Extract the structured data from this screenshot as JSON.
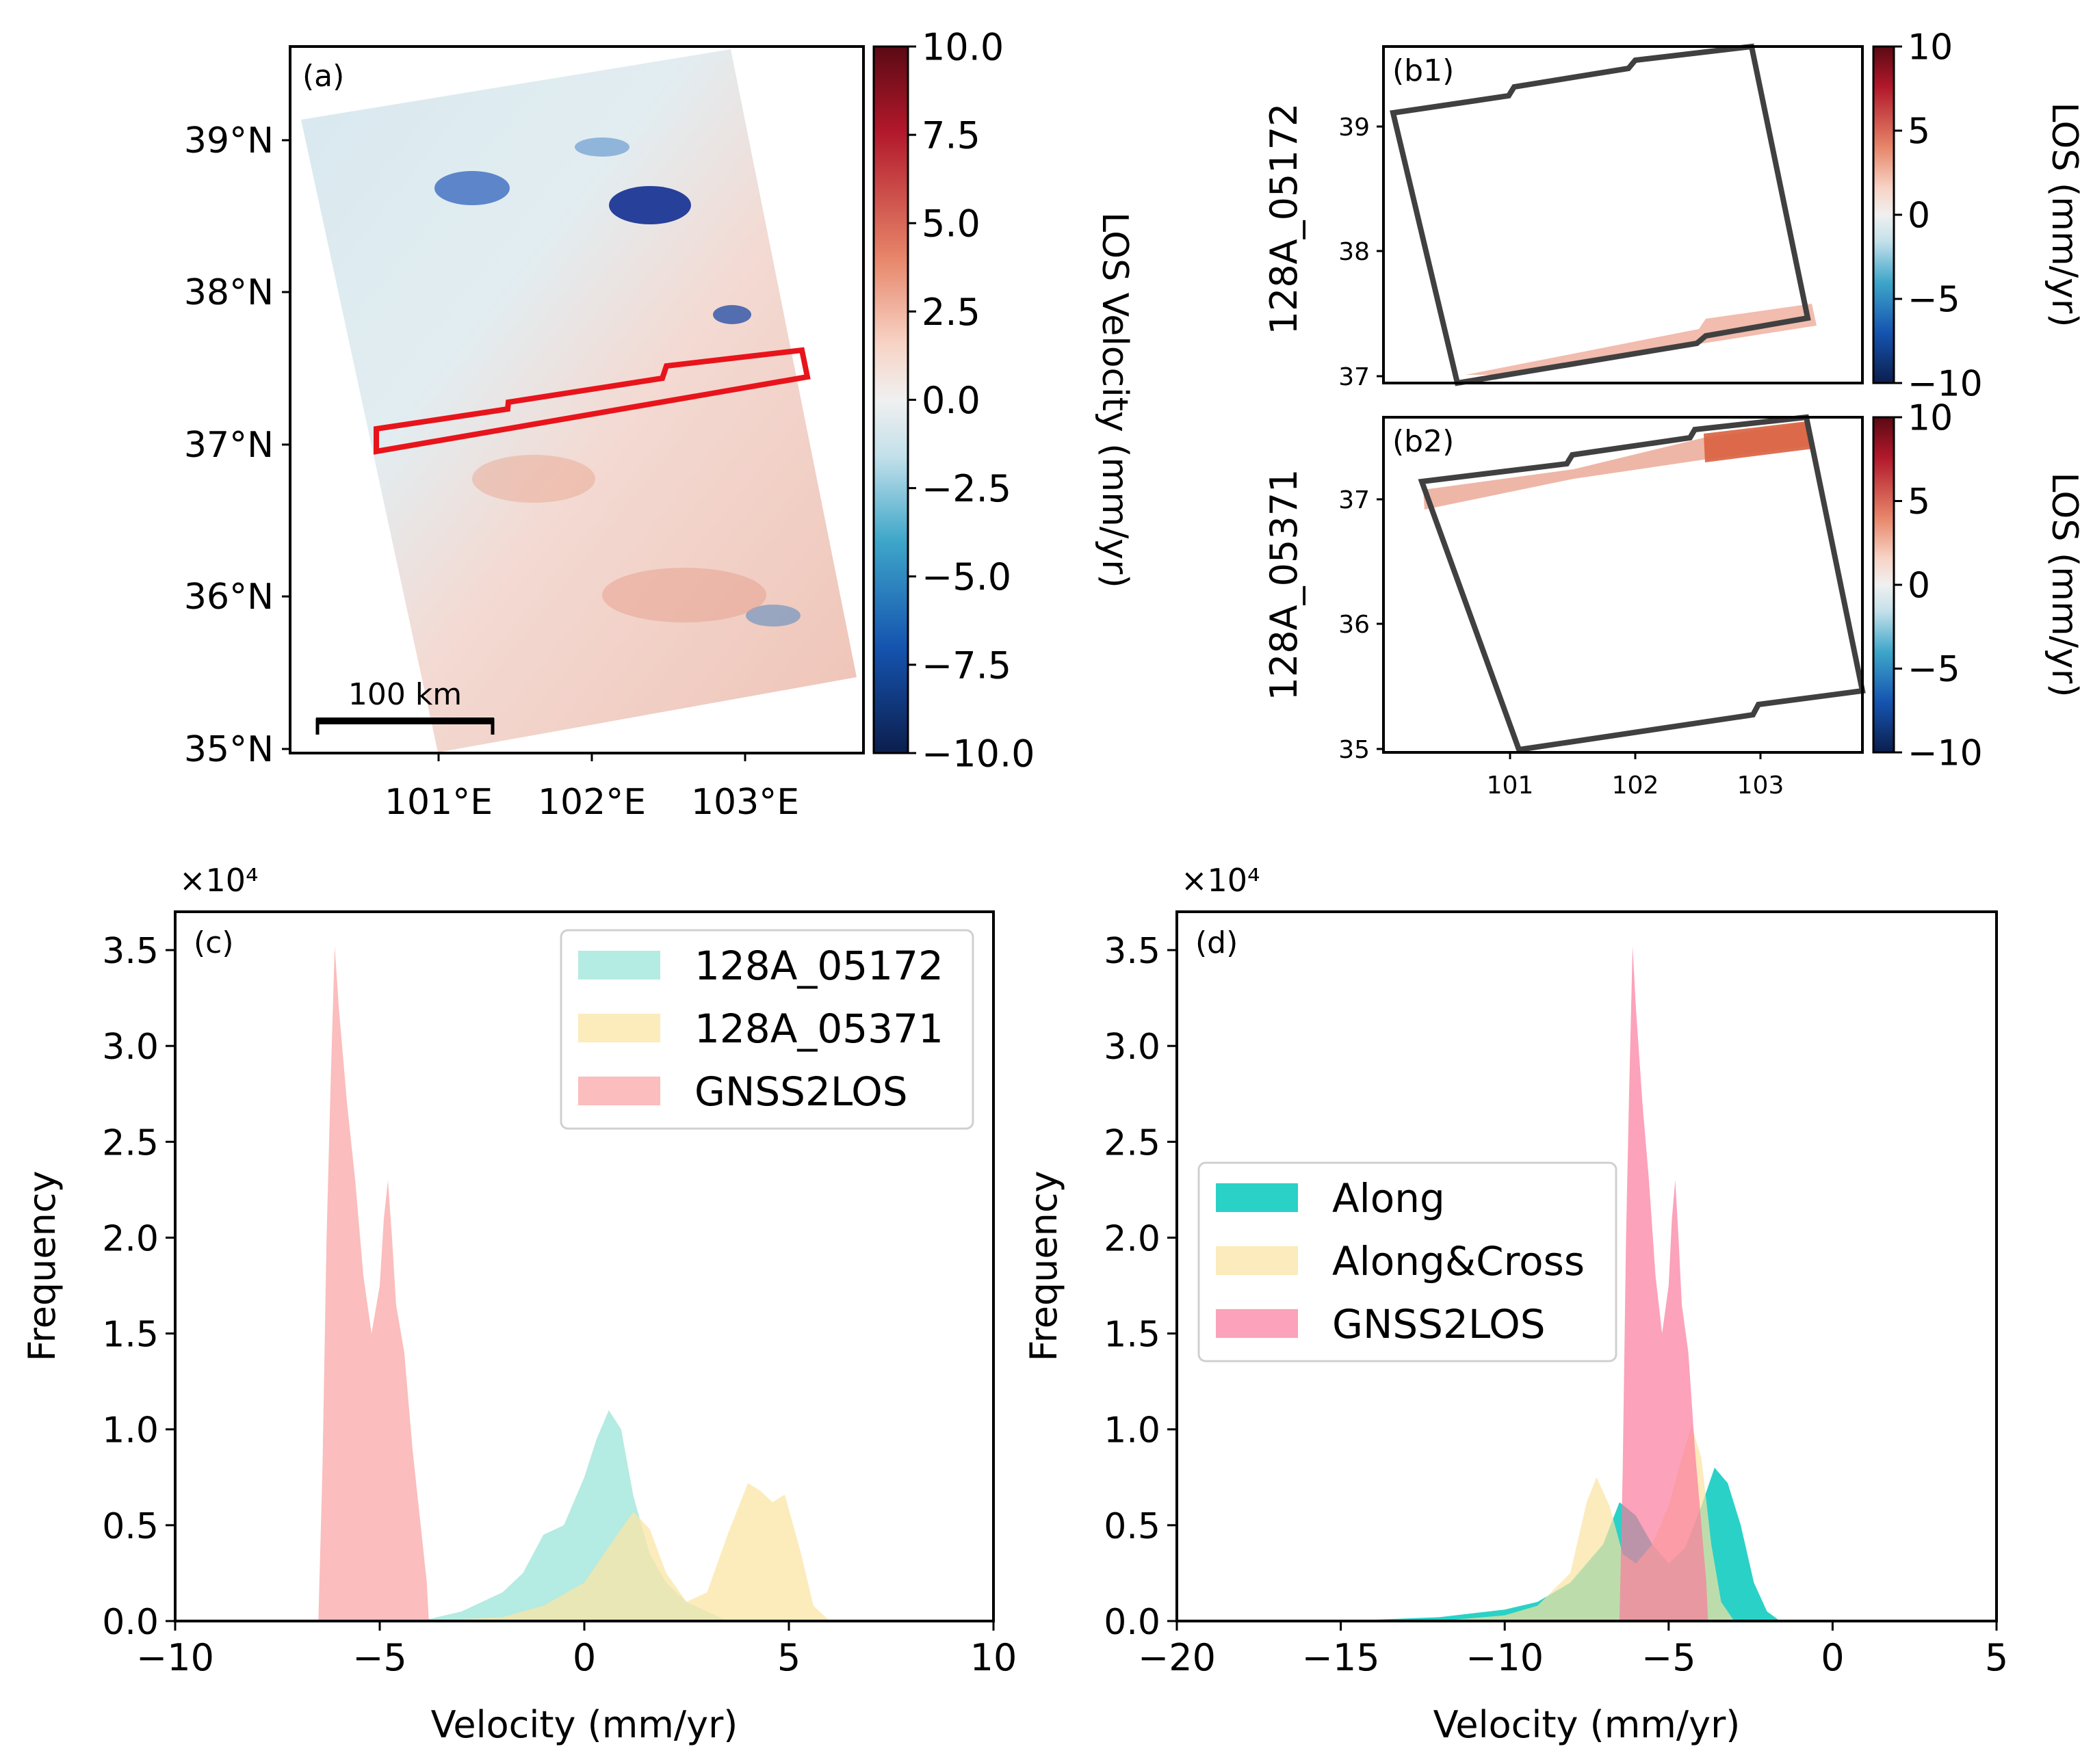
{
  "colorscale": {
    "neg": "#0b2a6b",
    "mid": "#f2f2f2",
    "pos": "#6b0b12"
  },
  "panel_a": {
    "label": "(a)",
    "yticks": [
      "39°N",
      "38°N",
      "37°N",
      "36°N",
      "35°N"
    ],
    "xticks": [
      "101°E",
      "102°E",
      "103°E"
    ],
    "scalebar": "100 km",
    "colorbar_label": "LOS Velocity (mm/yr)",
    "colorbar_ticks": [
      "10.0",
      "7.5",
      "5.0",
      "2.5",
      "0.0",
      "−2.5",
      "−5.0",
      "−7.5",
      "−10.0"
    ],
    "highlight_color": "#e8141b"
  },
  "panel_b1": {
    "label": "(b1)",
    "ylabel": "128A_05172",
    "yticks": [
      "39",
      "38",
      "37"
    ],
    "colorbar_label": "LOS (mm/yr)",
    "colorbar_ticks": [
      "10",
      "5",
      "0",
      "−5",
      "−10"
    ]
  },
  "panel_b2": {
    "label": "(b2)",
    "ylabel": "128A_05371",
    "yticks": [
      "37",
      "36",
      "35"
    ],
    "xticks": [
      "101",
      "102",
      "103"
    ],
    "colorbar_label": "LOS (mm/yr)",
    "colorbar_ticks": [
      "10",
      "5",
      "0",
      "−5",
      "−10"
    ]
  },
  "chart_data": [
    {
      "type": "histogram",
      "panel": "(c)",
      "title": "",
      "xlabel": "Velocity (mm/yr)",
      "ylabel": "Frequency",
      "multiplier": "×10⁴",
      "xlim": [
        -10,
        10
      ],
      "ylim": [
        0,
        3.7
      ],
      "xticks": [
        -10,
        -5,
        0,
        5,
        10
      ],
      "xtick_labels": [
        "−10",
        "−5",
        "0",
        "5",
        "10"
      ],
      "yticks": [
        0.0,
        0.5,
        1.0,
        1.5,
        2.0,
        2.5,
        3.0,
        3.5
      ],
      "ytick_labels": [
        "0.0",
        "0.5",
        "1.0",
        "1.5",
        "2.0",
        "2.5",
        "3.0",
        "3.5"
      ],
      "legend_position": "top-right",
      "series": [
        {
          "name": "128A_05172",
          "color": "#9be4d8",
          "opacity": 0.75,
          "points": [
            [
              -4,
              0
            ],
            [
              -3,
              0.05
            ],
            [
              -2,
              0.15
            ],
            [
              -1.5,
              0.25
            ],
            [
              -1,
              0.45
            ],
            [
              -0.5,
              0.5
            ],
            [
              0,
              0.75
            ],
            [
              0.3,
              0.95
            ],
            [
              0.6,
              1.1
            ],
            [
              0.9,
              1.0
            ],
            [
              1.2,
              0.65
            ],
            [
              1.6,
              0.35
            ],
            [
              2,
              0.2
            ],
            [
              2.5,
              0.1
            ],
            [
              3,
              0.05
            ],
            [
              3.5,
              0.0
            ]
          ]
        },
        {
          "name": "128A_05371",
          "color": "#fbe6a6",
          "opacity": 0.75,
          "points": [
            [
              -4,
              0
            ],
            [
              -2,
              0.02
            ],
            [
              -1,
              0.08
            ],
            [
              0,
              0.2
            ],
            [
              0.8,
              0.45
            ],
            [
              1.2,
              0.57
            ],
            [
              1.6,
              0.48
            ],
            [
              2,
              0.25
            ],
            [
              2.5,
              0.1
            ],
            [
              3,
              0.15
            ],
            [
              3.5,
              0.45
            ],
            [
              4,
              0.72
            ],
            [
              4.3,
              0.68
            ],
            [
              4.6,
              0.62
            ],
            [
              4.9,
              0.66
            ],
            [
              5.3,
              0.35
            ],
            [
              5.6,
              0.08
            ],
            [
              6,
              0
            ]
          ]
        },
        {
          "name": "GNSS2LOS",
          "color": "#f99a9a",
          "opacity": 0.65,
          "points": [
            [
              -6.5,
              0
            ],
            [
              -6.4,
              0.8
            ],
            [
              -6.3,
              2.0
            ],
            [
              -6.2,
              2.8
            ],
            [
              -6.1,
              3.52
            ],
            [
              -6.0,
              3.2
            ],
            [
              -5.8,
              2.7
            ],
            [
              -5.6,
              2.3
            ],
            [
              -5.4,
              1.8
            ],
            [
              -5.2,
              1.5
            ],
            [
              -5.0,
              1.75
            ],
            [
              -4.9,
              2.1
            ],
            [
              -4.8,
              2.3
            ],
            [
              -4.7,
              2.0
            ],
            [
              -4.6,
              1.65
            ],
            [
              -4.4,
              1.4
            ],
            [
              -4.2,
              0.9
            ],
            [
              -4.0,
              0.5
            ],
            [
              -3.85,
              0.2
            ],
            [
              -3.8,
              0
            ]
          ]
        }
      ]
    },
    {
      "type": "histogram",
      "panel": "(d)",
      "title": "",
      "xlabel": "Velocity (mm/yr)",
      "ylabel": "Frequency",
      "multiplier": "×10⁴",
      "xlim": [
        -20,
        5
      ],
      "ylim": [
        0,
        3.7
      ],
      "xticks": [
        -20,
        -15,
        -10,
        -5,
        0,
        5
      ],
      "xtick_labels": [
        "−20",
        "−15",
        "−10",
        "−5",
        "0",
        "5"
      ],
      "yticks": [
        0.0,
        0.5,
        1.0,
        1.5,
        2.0,
        2.5,
        3.0,
        3.5
      ],
      "ytick_labels": [
        "0.0",
        "0.5",
        "1.0",
        "1.5",
        "2.0",
        "2.5",
        "3.0",
        "3.5"
      ],
      "legend_position": "center-left",
      "series": [
        {
          "name": "Along",
          "color": "#1fcfc4",
          "opacity": 0.95,
          "points": [
            [
              -15,
              0
            ],
            [
              -12,
              0.02
            ],
            [
              -10,
              0.06
            ],
            [
              -9,
              0.1
            ],
            [
              -8,
              0.2
            ],
            [
              -7,
              0.4
            ],
            [
              -6.5,
              0.62
            ],
            [
              -6,
              0.55
            ],
            [
              -5.5,
              0.4
            ],
            [
              -5,
              0.3
            ],
            [
              -4.5,
              0.38
            ],
            [
              -4,
              0.6
            ],
            [
              -3.6,
              0.8
            ],
            [
              -3.2,
              0.72
            ],
            [
              -2.8,
              0.5
            ],
            [
              -2.4,
              0.2
            ],
            [
              -2,
              0.05
            ],
            [
              -1.6,
              0
            ]
          ]
        },
        {
          "name": "Along&Cross",
          "color": "#fbe2a0",
          "opacity": 0.7,
          "points": [
            [
              -12,
              0
            ],
            [
              -10,
              0.03
            ],
            [
              -9,
              0.08
            ],
            [
              -8,
              0.25
            ],
            [
              -7.5,
              0.62
            ],
            [
              -7.2,
              0.75
            ],
            [
              -6.8,
              0.6
            ],
            [
              -6.4,
              0.35
            ],
            [
              -6,
              0.3
            ],
            [
              -5.5,
              0.4
            ],
            [
              -5,
              0.6
            ],
            [
              -4.6,
              0.85
            ],
            [
              -4.3,
              1.02
            ],
            [
              -4,
              0.85
            ],
            [
              -3.7,
              0.4
            ],
            [
              -3.4,
              0.1
            ],
            [
              -3,
              0
            ]
          ]
        },
        {
          "name": "GNSS2LOS",
          "color": "#fb7b9c",
          "opacity": 0.7,
          "points": [
            [
              -6.5,
              0
            ],
            [
              -6.4,
              0.8
            ],
            [
              -6.3,
              2.0
            ],
            [
              -6.2,
              2.8
            ],
            [
              -6.1,
              3.52
            ],
            [
              -6.0,
              3.2
            ],
            [
              -5.8,
              2.7
            ],
            [
              -5.6,
              2.3
            ],
            [
              -5.4,
              1.8
            ],
            [
              -5.2,
              1.5
            ],
            [
              -5.0,
              1.75
            ],
            [
              -4.9,
              2.1
            ],
            [
              -4.8,
              2.3
            ],
            [
              -4.7,
              2.0
            ],
            [
              -4.6,
              1.65
            ],
            [
              -4.4,
              1.4
            ],
            [
              -4.2,
              0.9
            ],
            [
              -4.0,
              0.5
            ],
            [
              -3.85,
              0.2
            ],
            [
              -3.8,
              0
            ]
          ]
        }
      ]
    }
  ]
}
